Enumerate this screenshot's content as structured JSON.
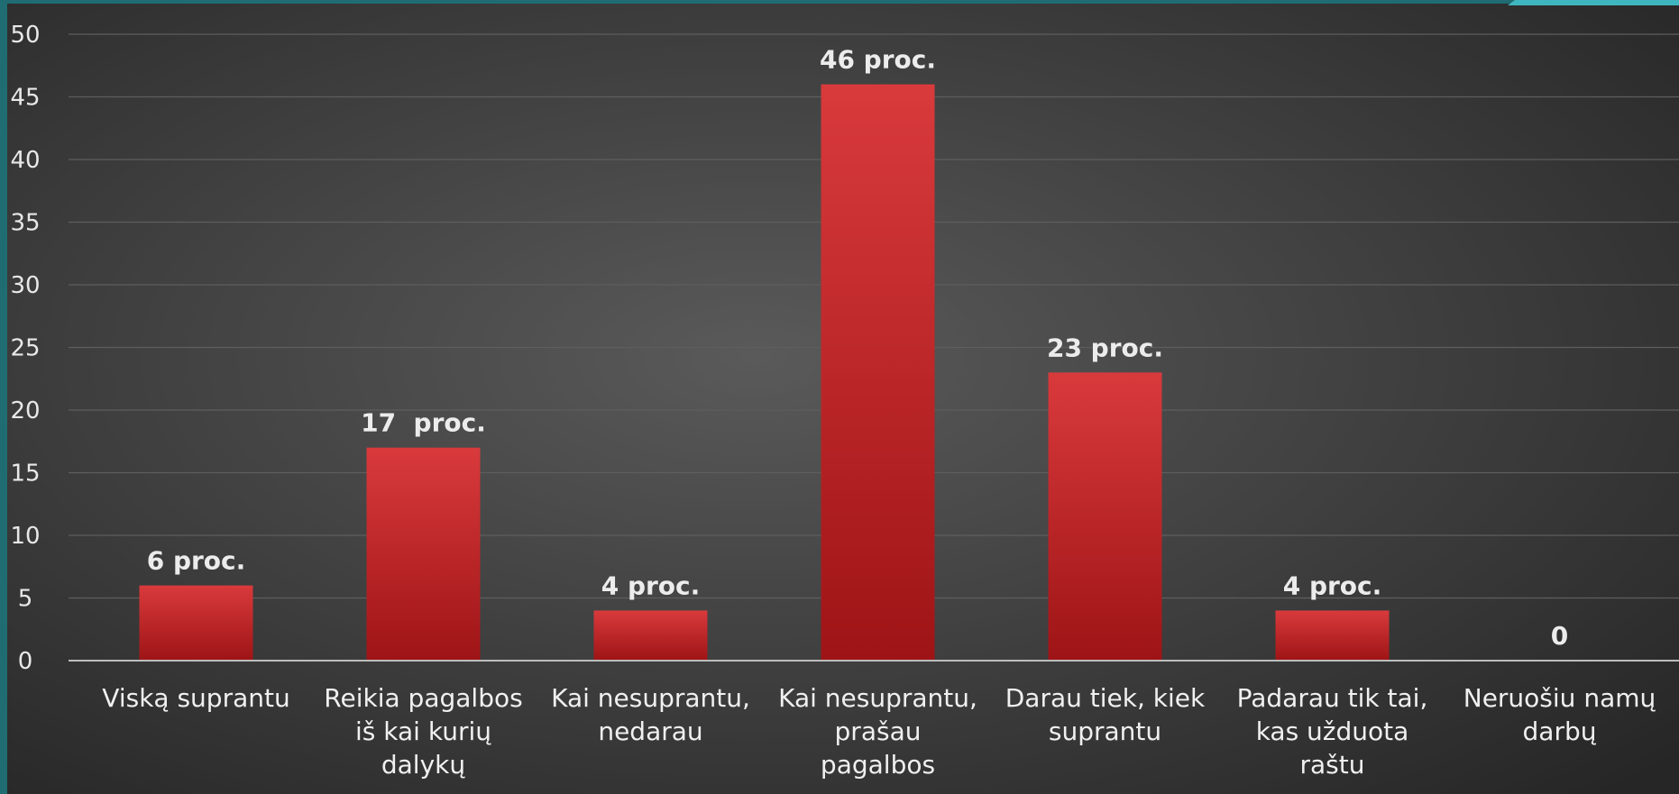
{
  "colors": {
    "bar": "#c8262a",
    "bar_top": "#d93a3c",
    "bar_bottom": "#9e1416",
    "gridline": "#5e5e5e",
    "axis": "#bdbdbd",
    "text": "#ececec",
    "background_center": "#5a5a5a",
    "background_edge": "#262626",
    "accent_teal": "#1f6d73"
  },
  "chart_data": {
    "type": "bar",
    "categories": [
      [
        "Viską suprantu"
      ],
      [
        "Reikia pagalbos",
        "iš kai kurių",
        "dalykų"
      ],
      [
        "Kai nesuprantu,",
        "nedarau"
      ],
      [
        "Kai nesuprantu,",
        "prašau",
        "pagalbos"
      ],
      [
        "Darau tiek, kiek",
        "suprantu"
      ],
      [
        "Padarau tik tai,",
        "kas užduota",
        "raštu"
      ],
      [
        "Neruošiu namų",
        "darbų"
      ]
    ],
    "values": [
      6,
      17,
      4,
      46,
      23,
      4,
      0
    ],
    "data_labels": [
      "6 proc.",
      "17  proc.",
      "4 proc.",
      "46 proc.",
      "23 proc.",
      "4 proc.",
      "0"
    ],
    "ylim": [
      0,
      50
    ],
    "yticks": [
      0,
      5,
      10,
      15,
      20,
      25,
      30,
      35,
      40,
      45,
      50
    ],
    "grid": true,
    "legend": "none",
    "title": "",
    "xlabel": "",
    "ylabel": ""
  }
}
